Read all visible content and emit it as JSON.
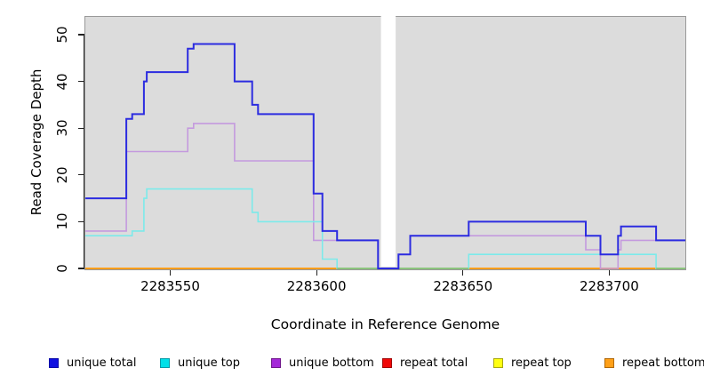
{
  "figure_title": "",
  "x_axis": {
    "label": "Coordinate in Reference Genome",
    "tick_labels": [
      "2283550",
      "2283600",
      "2283650",
      "2283700"
    ],
    "tick_values": [
      2283550,
      2283600,
      2283650,
      2283700
    ]
  },
  "y_axis": {
    "label": "Read Coverage Depth",
    "tick_labels": [
      "0",
      "10",
      "20",
      "30",
      "40",
      "50"
    ],
    "tick_values": [
      0,
      10,
      20,
      30,
      40,
      50
    ]
  },
  "chart_data": {
    "type": "line",
    "line_style": "step",
    "title": "",
    "xlabel": "Coordinate in Reference Genome",
    "ylabel": "Read Coverage Depth",
    "xlim": [
      2283521,
      2283726
    ],
    "ylim": [
      0,
      54
    ],
    "grid": false,
    "plot_background": "#dcdcdc",
    "masked_region": {
      "from": 2283622,
      "to": 2283627,
      "color": "#ffffff"
    },
    "legend_position": "bottom",
    "series": [
      {
        "name": "repeat total",
        "line_color": "#e03030",
        "line_width": 2,
        "points": [
          [
            2283521,
            0
          ],
          [
            2283726,
            0
          ]
        ]
      },
      {
        "name": "repeat top",
        "line_color": "#f0f040",
        "line_width": 1.6,
        "points": [
          [
            2283521,
            0
          ],
          [
            2283726,
            0
          ]
        ]
      },
      {
        "name": "repeat bottom",
        "line_color": "#ff9e1a",
        "line_width": 2,
        "points": [
          [
            2283521,
            0
          ],
          [
            2283726,
            0
          ]
        ]
      },
      {
        "name": "unique bottom",
        "line_color": "#c49ade",
        "line_width": 1.6,
        "points": [
          [
            2283521,
            8
          ],
          [
            2283535,
            25
          ],
          [
            2283556,
            30
          ],
          [
            2283558,
            31
          ],
          [
            2283572,
            23
          ],
          [
            2283599,
            6
          ],
          [
            2283621,
            0
          ],
          [
            2283628,
            3
          ],
          [
            2283632,
            7
          ],
          [
            2283692,
            4
          ],
          [
            2283697,
            0
          ],
          [
            2283703,
            4
          ],
          [
            2283704,
            6
          ],
          [
            2283726,
            6
          ]
        ]
      },
      {
        "name": "unique top",
        "line_color": "#7ceaea",
        "line_width": 1.6,
        "points": [
          [
            2283521,
            7
          ],
          [
            2283537,
            8
          ],
          [
            2283541,
            15
          ],
          [
            2283542,
            17
          ],
          [
            2283578,
            12
          ],
          [
            2283580,
            10
          ],
          [
            2283602,
            2
          ],
          [
            2283607,
            0
          ],
          [
            2283652,
            3
          ],
          [
            2283716,
            0
          ],
          [
            2283726,
            0
          ]
        ]
      },
      {
        "name": "unique total",
        "line_color": "#2c2ce0",
        "line_width": 2,
        "points": [
          [
            2283521,
            15
          ],
          [
            2283535,
            32
          ],
          [
            2283537,
            33
          ],
          [
            2283541,
            40
          ],
          [
            2283542,
            42
          ],
          [
            2283556,
            47
          ],
          [
            2283558,
            48
          ],
          [
            2283572,
            40
          ],
          [
            2283578,
            35
          ],
          [
            2283580,
            33
          ],
          [
            2283599,
            16
          ],
          [
            2283602,
            8
          ],
          [
            2283607,
            6
          ],
          [
            2283621,
            0
          ],
          [
            2283628,
            3
          ],
          [
            2283632,
            7
          ],
          [
            2283652,
            10
          ],
          [
            2283692,
            7
          ],
          [
            2283697,
            3
          ],
          [
            2283703,
            7
          ],
          [
            2283704,
            9
          ],
          [
            2283716,
            6
          ],
          [
            2283726,
            6
          ]
        ]
      }
    ],
    "zero_line_overlap_segments": [
      {
        "from": 2283607,
        "to": 2283652,
        "value": 0,
        "color": "#86c57e"
      },
      {
        "from": 2283716,
        "to": 2283726,
        "value": 0,
        "color": "#86c57e"
      }
    ]
  },
  "legend": {
    "items": [
      {
        "label": "unique total",
        "fill": "#1010e0",
        "border": "#0808a8"
      },
      {
        "label": "unique top",
        "fill": "#00e0e8",
        "border": "#089aa8"
      },
      {
        "label": "unique bottom",
        "fill": "#a428d8",
        "border": "#70188c"
      },
      {
        "label": "repeat total",
        "fill": "#f00808",
        "border": "#a00808"
      },
      {
        "label": "repeat top",
        "fill": "#ffff10",
        "border": "#a8a810"
      },
      {
        "label": "repeat bottom",
        "fill": "#ffa018",
        "border": "#b06808"
      }
    ]
  }
}
